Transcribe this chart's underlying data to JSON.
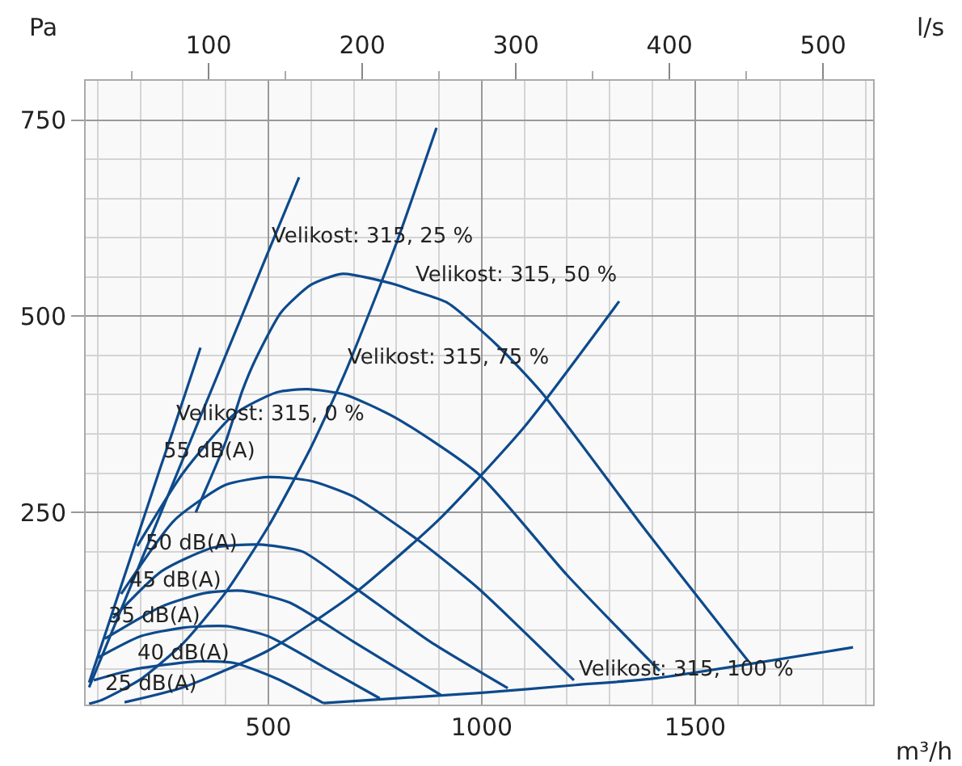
{
  "chart_data": {
    "type": "line",
    "xlabel": "m³/h",
    "ylabel": "Pa",
    "x2label": "l/s",
    "xlim": [
      72,
      1917
    ],
    "ylim": [
      5,
      800
    ],
    "xticks": [
      500,
      1000,
      1500
    ],
    "yticks": [
      250,
      500,
      750
    ],
    "x2lim": [
      20,
      532.5
    ],
    "x2ticks": [
      100,
      200,
      300,
      400,
      500
    ],
    "grid": true,
    "line_style": "solid",
    "series": [
      {
        "color": "#0d4a8c",
        "x": [
          80,
          119,
          247,
          277,
          341
        ],
        "values": [
          33,
          97,
          307,
          355,
          460
        ]
      },
      {
        "color": "#0d4a8c",
        "x": [
          80,
          167,
          204,
          499,
          572
        ],
        "values": [
          27,
          142,
          191,
          581,
          677
        ]
      },
      {
        "color": "#0d4a8c",
        "x": [
          80,
          110,
          200,
          300,
          400,
          500,
          600,
          680,
          800,
          894
        ],
        "values": [
          6,
          11,
          37,
          83,
          148,
          232,
          333,
          428,
          593,
          740
        ]
      },
      {
        "color": "#0d4a8c",
        "x": [
          163,
          300,
          500,
          700,
          900,
          1100,
          1322
        ],
        "values": [
          8,
          27,
          74,
          146,
          241,
          359,
          519
        ]
      },
      {
        "color": "#0d4a8c",
        "x": [
          629,
          1000,
          1220,
          1400,
          1870
        ],
        "values": [
          7,
          20,
          30,
          38,
          78
        ]
      },
      {
        "color": "#0d4a8c",
        "x": [
          91,
          187,
          330,
          420,
          520,
          629
        ],
        "values": [
          36,
          50,
          60,
          58,
          38,
          7
        ]
      },
      {
        "color": "#0d4a8c",
        "x": [
          98,
          200,
          300,
          402,
          500,
          640,
          761
        ],
        "values": [
          64,
          92,
          103,
          105,
          92,
          50,
          13
        ]
      },
      {
        "color": "#0d4a8c",
        "x": [
          117,
          250,
          350,
          439,
          550,
          700,
          905
        ],
        "values": [
          89,
          130,
          147,
          150,
          135,
          85,
          17
        ]
      },
      {
        "color": "#0d4a8c",
        "x": [
          136,
          250,
          370,
          477,
          580,
          700,
          880,
          1061
        ],
        "values": [
          115,
          175,
          205,
          209,
          200,
          155,
          85,
          26
        ]
      },
      {
        "color": "#0d4a8c",
        "x": [
          155,
          280,
          400,
          500,
          600,
          700,
          850,
          990,
          1216
        ],
        "values": [
          146,
          240,
          285,
          295,
          290,
          270,
          215,
          154,
          36
        ]
      },
      {
        "color": "#0d4a8c",
        "x": [
          193,
          300,
          420,
          520,
          591,
          680,
          800,
          992,
          1200,
          1417
        ],
        "values": [
          207,
          300,
          375,
          403,
          407,
          400,
          370,
          299,
          170,
          48
        ]
      },
      {
        "color": "#0d4a8c",
        "x": [
          330,
          400,
          439,
          470,
          530,
          600,
          674,
          800,
          837,
          920,
          1038,
          1140,
          1380,
          1625
        ],
        "values": [
          250,
          340,
          405,
          445,
          505,
          540,
          554,
          540,
          533,
          517,
          462,
          403,
          230,
          60
        ]
      }
    ],
    "annotations": [
      {
        "text": "Velikost: 315, 25 %",
        "x": 499,
        "y": 581
      },
      {
        "text": "Velikost: 315, 50 %",
        "x": 837,
        "y": 533
      },
      {
        "text": "Velikost: 315, 75 %",
        "x": 680,
        "y": 428
      },
      {
        "text": "Velikost: 315, 0 %",
        "x": 277,
        "y": 355
      },
      {
        "text": "55 dB(A)",
        "x": 247,
        "y": 307
      },
      {
        "text": "50 dB(A)",
        "x": 204,
        "y": 191
      },
      {
        "text": "45 dB(A)",
        "x": 167,
        "y": 142
      },
      {
        "text": "35 dB(A)",
        "x": 119,
        "y": 97
      },
      {
        "text": "40 dB(A)",
        "x": 187,
        "y": 50
      },
      {
        "text": "25 dB(A)",
        "x": 110,
        "y": 11
      },
      {
        "text": "Velikost: 315, 100 %",
        "x": 1220,
        "y": 30
      }
    ]
  }
}
